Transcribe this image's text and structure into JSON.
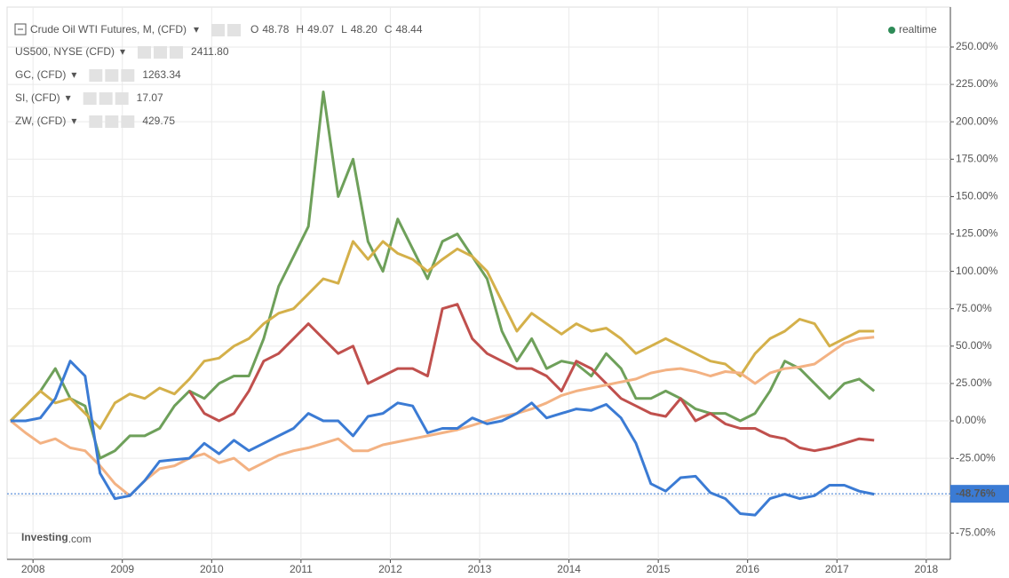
{
  "chart_data": {
    "type": "line",
    "title": "Crude Oil WTI Futures, M, (CFD)",
    "ohlc": [
      {
        "label": "O",
        "value": "48.78"
      },
      {
        "label": "H",
        "value": "49.07"
      },
      {
        "label": "L",
        "value": "48.20"
      },
      {
        "label": "C",
        "value": "48.44"
      }
    ],
    "status": "realtime",
    "logo": {
      "main": "Investing",
      "suffix": ".com"
    },
    "x": [
      2007.75,
      2007.917,
      2008.083,
      2008.25,
      2008.417,
      2008.583,
      2008.75,
      2008.917,
      2009.083,
      2009.25,
      2009.417,
      2009.583,
      2009.75,
      2009.917,
      2010.083,
      2010.25,
      2010.417,
      2010.583,
      2010.75,
      2010.917,
      2011.083,
      2011.25,
      2011.417,
      2011.583,
      2011.75,
      2011.917,
      2012.083,
      2012.25,
      2012.417,
      2012.583,
      2012.75,
      2012.917,
      2013.083,
      2013.25,
      2013.417,
      2013.583,
      2013.75,
      2013.917,
      2014.083,
      2014.25,
      2014.417,
      2014.583,
      2014.75,
      2014.917,
      2015.083,
      2015.25,
      2015.417,
      2015.583,
      2015.75,
      2015.917,
      2016.083,
      2016.25,
      2016.417,
      2016.583,
      2016.75,
      2016.917,
      2017.083,
      2017.25,
      2017.417
    ],
    "series": [
      {
        "name": "SI, (CFD)",
        "price_label": "17.07",
        "color": "#6ea05a",
        "values": [
          0,
          10,
          20,
          35,
          15,
          10,
          -25,
          -20,
          -10,
          -10,
          -5,
          10,
          20,
          15,
          25,
          30,
          30,
          55,
          90,
          110,
          130,
          220,
          150,
          175,
          120,
          100,
          135,
          115,
          95,
          120,
          125,
          110,
          95,
          60,
          40,
          55,
          35,
          40,
          38,
          30,
          45,
          35,
          15,
          15,
          20,
          15,
          8,
          5,
          5,
          0,
          5,
          20,
          40,
          35,
          25,
          15,
          25,
          28,
          20
        ]
      },
      {
        "name": "GC, (CFD)",
        "price_label": "1263.34",
        "color": "#d4b04a",
        "values": [
          0,
          10,
          20,
          12,
          15,
          5,
          -5,
          12,
          18,
          15,
          22,
          18,
          28,
          40,
          42,
          50,
          55,
          65,
          72,
          75,
          85,
          95,
          92,
          120,
          108,
          120,
          112,
          108,
          100,
          108,
          115,
          110,
          100,
          80,
          60,
          72,
          65,
          58,
          65,
          60,
          62,
          55,
          45,
          50,
          55,
          50,
          45,
          40,
          38,
          30,
          45,
          55,
          60,
          68,
          65,
          50,
          55,
          60,
          60
        ]
      },
      {
        "name": "ZW, (CFD)",
        "price_label": "429.75",
        "color": "#c0504d",
        "values": [
          null,
          null,
          null,
          null,
          null,
          null,
          null,
          null,
          null,
          null,
          null,
          null,
          20,
          5,
          0,
          5,
          20,
          40,
          45,
          55,
          65,
          55,
          45,
          50,
          25,
          30,
          35,
          35,
          30,
          75,
          78,
          55,
          45,
          40,
          35,
          35,
          30,
          20,
          40,
          35,
          25,
          15,
          10,
          5,
          3,
          15,
          0,
          5,
          -2,
          -5,
          -5,
          -10,
          -12,
          -18,
          -20,
          -18,
          -15,
          -12,
          -13
        ]
      },
      {
        "name": "US500, NYSE (CFD)",
        "price_label": "2411.80",
        "color": "#f3b283",
        "values": [
          0,
          -8,
          -15,
          -12,
          -18,
          -20,
          -30,
          -42,
          -50,
          -40,
          -32,
          -30,
          -25,
          -22,
          -28,
          -25,
          -33,
          -28,
          -23,
          -20,
          -18,
          -15,
          -12,
          -20,
          -20,
          -16,
          -14,
          -12,
          -10,
          -8,
          -6,
          -3,
          0,
          3,
          5,
          8,
          12,
          17,
          20,
          22,
          24,
          26,
          28,
          32,
          34,
          35,
          33,
          30,
          33,
          32,
          25,
          32,
          35,
          36,
          38,
          45,
          52,
          55,
          56
        ]
      },
      {
        "name": "Crude Oil WTI Futures, M, (CFD)",
        "color": "#3b7bd4",
        "values": [
          0,
          0,
          2,
          15,
          40,
          30,
          -35,
          -52,
          -50,
          -40,
          -27,
          -26,
          -25,
          -15,
          -22,
          -13,
          -20,
          -15,
          -10,
          -5,
          5,
          0,
          0,
          -10,
          3,
          5,
          12,
          10,
          -8,
          -5,
          -5,
          2,
          -2,
          0,
          5,
          12,
          2,
          5,
          8,
          7,
          11,
          2,
          -15,
          -42,
          -47,
          -38,
          -37,
          -48,
          -52,
          -62,
          -63,
          -52,
          -49,
          -52,
          -50,
          -43,
          -43,
          -47,
          -49
        ]
      }
    ],
    "reference": {
      "value": -48.76,
      "label": "-48.76%"
    },
    "xlim": [
      2007.71,
      2018.27
    ],
    "xticks": [
      2008,
      2009,
      2010,
      2011,
      2012,
      2013,
      2014,
      2015,
      2016,
      2017,
      2018
    ],
    "ylim": [
      -92.6,
      276.7
    ],
    "yticks": [
      {
        "value": -75,
        "label": "-75.00%"
      },
      {
        "value": -50,
        "label": "-50.00%"
      },
      {
        "value": -25,
        "label": "-25.00%"
      },
      {
        "value": 0,
        "label": "0.00%"
      },
      {
        "value": 25,
        "label": "25.00%"
      },
      {
        "value": 50,
        "label": "50.00%"
      },
      {
        "value": 75,
        "label": "75.00%"
      },
      {
        "value": 100,
        "label": "100.00%"
      },
      {
        "value": 125,
        "label": "125.00%"
      },
      {
        "value": 150,
        "label": "150.00%"
      },
      {
        "value": 175,
        "label": "175.00%"
      },
      {
        "value": 200,
        "label": "200.00%"
      },
      {
        "value": 225,
        "label": "225.00%"
      },
      {
        "value": 250,
        "label": "250.00%"
      }
    ],
    "grid": true
  }
}
